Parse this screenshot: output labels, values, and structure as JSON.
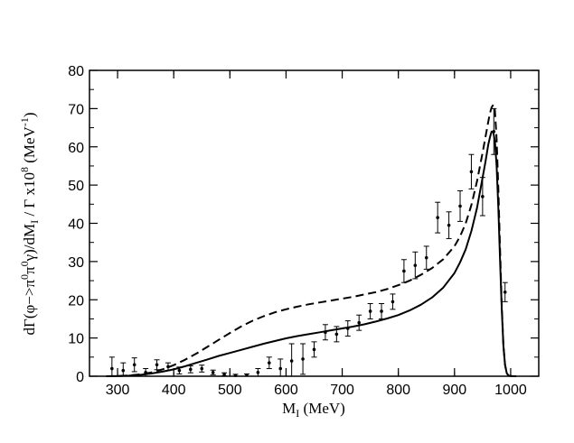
{
  "chart_data": {
    "type": "line",
    "xlabel": "M",
    "xlabel_sub": "I",
    "xlabel_unit": " (MeV)",
    "ylabel_parts": {
      "p1": "dΓ(φ−>π",
      "s1": "0",
      "p2": "π",
      "s2": "0",
      "p3": "γ)/dM",
      "sub": "I",
      "p4": " / Γ  x10",
      "s3": "8",
      "p5": " (MeV",
      "s4": "-1",
      "p6": ")"
    },
    "xlim": [
      250,
      1050
    ],
    "ylim": [
      0,
      80
    ],
    "x_ticks": [
      300,
      400,
      500,
      600,
      700,
      800,
      900,
      1000
    ],
    "y_ticks": [
      0,
      10,
      20,
      30,
      40,
      50,
      60,
      70,
      80
    ],
    "series": [
      {
        "name": "solid",
        "style": "solid",
        "x": [
          280,
          300,
          320,
          340,
          360,
          380,
          400,
          420,
          440,
          460,
          480,
          500,
          520,
          540,
          560,
          580,
          600,
          620,
          640,
          660,
          680,
          700,
          720,
          740,
          760,
          780,
          800,
          820,
          840,
          860,
          880,
          900,
          910,
          920,
          930,
          940,
          950,
          955,
          960,
          963,
          966,
          969,
          972,
          975,
          978,
          981,
          984,
          987,
          990,
          993,
          996,
          1000,
          1005,
          1010
        ],
        "y": [
          0,
          0.05,
          0.15,
          0.35,
          0.7,
          1.2,
          1.8,
          2.6,
          3.5,
          4.4,
          5.3,
          6.1,
          6.9,
          7.7,
          8.5,
          9.2,
          9.9,
          10.5,
          11.0,
          11.5,
          12.0,
          12.5,
          13.0,
          13.6,
          14.3,
          15.1,
          16.0,
          17.2,
          18.7,
          20.6,
          23.2,
          27.0,
          29.8,
          33.2,
          38.0,
          44.0,
          52.0,
          56.0,
          60.5,
          62.5,
          64.0,
          63.8,
          61.5,
          55.0,
          44.0,
          31.0,
          18.0,
          8.0,
          3.0,
          0.8,
          0.2,
          0.05,
          0,
          0
        ]
      },
      {
        "name": "dashed",
        "style": "dashed",
        "x": [
          280,
          300,
          320,
          340,
          360,
          380,
          400,
          420,
          440,
          460,
          480,
          500,
          520,
          540,
          560,
          580,
          600,
          620,
          640,
          660,
          680,
          700,
          720,
          740,
          760,
          780,
          800,
          820,
          840,
          860,
          880,
          900,
          910,
          920,
          930,
          940,
          950,
          955,
          960,
          963,
          966,
          969,
          972,
          975,
          978,
          981,
          984,
          987,
          990,
          993,
          996,
          1000,
          1005,
          1010
        ],
        "y": [
          0,
          0.05,
          0.2,
          0.5,
          1.0,
          1.8,
          2.9,
          4.3,
          5.9,
          7.7,
          9.5,
          11.3,
          13.0,
          14.5,
          15.7,
          16.7,
          17.5,
          18.2,
          18.8,
          19.3,
          19.8,
          20.3,
          20.8,
          21.4,
          22.0,
          22.8,
          23.8,
          25.0,
          26.5,
          28.3,
          30.6,
          34.0,
          36.6,
          40.0,
          44.8,
          51.0,
          58.5,
          62.5,
          66.5,
          68.8,
          70.3,
          71.0,
          69.5,
          62.0,
          49.0,
          34.0,
          19.0,
          8.0,
          3.0,
          0.8,
          0.2,
          0.05,
          0,
          0
        ]
      }
    ],
    "points": [
      {
        "x": 290,
        "y": 2.0,
        "err": 3.0
      },
      {
        "x": 310,
        "y": 1.5,
        "err": 2.0
      },
      {
        "x": 330,
        "y": 3.0,
        "err": 1.8
      },
      {
        "x": 350,
        "y": 1.0,
        "err": 1.0
      },
      {
        "x": 370,
        "y": 3.0,
        "err": 1.3
      },
      {
        "x": 390,
        "y": 2.5,
        "err": 1.0
      },
      {
        "x": 410,
        "y": 1.5,
        "err": 0.9
      },
      {
        "x": 430,
        "y": 1.8,
        "err": 0.9
      },
      {
        "x": 450,
        "y": 2.0,
        "err": 0.9
      },
      {
        "x": 470,
        "y": 1.0,
        "err": 0.6
      },
      {
        "x": 490,
        "y": 0.5,
        "err": 0.4
      },
      {
        "x": 510,
        "y": 0.2,
        "err": 0.3
      },
      {
        "x": 530,
        "y": 0.3,
        "err": 0.3
      },
      {
        "x": 550,
        "y": 1.0,
        "err": 1.0
      },
      {
        "x": 570,
        "y": 3.5,
        "err": 1.5
      },
      {
        "x": 590,
        "y": 2.0,
        "err": 2.5
      },
      {
        "x": 610,
        "y": 4.0,
        "err": 4.5
      },
      {
        "x": 630,
        "y": 4.5,
        "err": 4.0
      },
      {
        "x": 650,
        "y": 7.0,
        "err": 2.0
      },
      {
        "x": 670,
        "y": 11.5,
        "err": 2.0
      },
      {
        "x": 690,
        "y": 11.0,
        "err": 2.0
      },
      {
        "x": 710,
        "y": 12.5,
        "err": 2.0
      },
      {
        "x": 730,
        "y": 14.0,
        "err": 2.0
      },
      {
        "x": 750,
        "y": 17.0,
        "err": 2.0
      },
      {
        "x": 770,
        "y": 17.0,
        "err": 2.0
      },
      {
        "x": 790,
        "y": 19.5,
        "err": 2.0
      },
      {
        "x": 810,
        "y": 27.5,
        "err": 3.0
      },
      {
        "x": 830,
        "y": 29.0,
        "err": 3.5
      },
      {
        "x": 850,
        "y": 31.0,
        "err": 3.0
      },
      {
        "x": 870,
        "y": 41.5,
        "err": 4.0
      },
      {
        "x": 890,
        "y": 39.5,
        "err": 3.5
      },
      {
        "x": 910,
        "y": 44.5,
        "err": 4.0
      },
      {
        "x": 930,
        "y": 53.5,
        "err": 4.5
      },
      {
        "x": 950,
        "y": 47.0,
        "err": 5.0
      },
      {
        "x": 970,
        "y": 64.0,
        "err": 6.0
      },
      {
        "x": 990,
        "y": 22.0,
        "err": 2.5
      }
    ]
  }
}
